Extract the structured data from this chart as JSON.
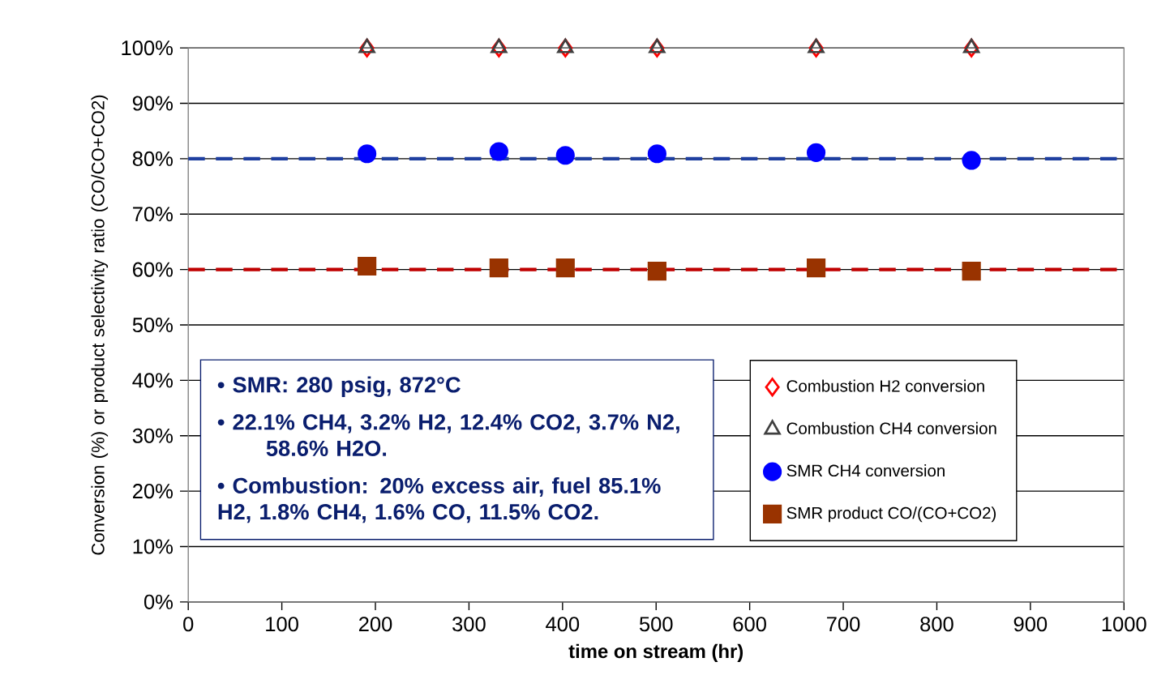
{
  "chart_data": {
    "type": "scatter",
    "xlabel": "time on stream (hr)",
    "ylabel": "Conversion (%) or product selectivity ratio (CO/CO+CO2)",
    "xlim": [
      0,
      1000
    ],
    "xticks": [
      0,
      100,
      200,
      300,
      400,
      500,
      600,
      700,
      800,
      900,
      1000
    ],
    "ylim": [
      0,
      100
    ],
    "yticks": [
      {
        "value": 0,
        "label": "0%"
      },
      {
        "value": 10,
        "label": "10%"
      },
      {
        "value": 20,
        "label": "20%"
      },
      {
        "value": 30,
        "label": "30%"
      },
      {
        "value": 40,
        "label": "40%"
      },
      {
        "value": 50,
        "label": "50%"
      },
      {
        "value": 60,
        "label": "60%"
      },
      {
        "value": 70,
        "label": "70%"
      },
      {
        "value": 80,
        "label": "80%"
      },
      {
        "value": 90,
        "label": "90%"
      },
      {
        "value": 100,
        "label": "100%"
      }
    ],
    "grid": "y",
    "legend": "bottom right",
    "x": [
      191,
      332,
      403,
      501,
      671,
      837
    ],
    "series": [
      {
        "name": "Combustion H2 conversion",
        "color": "#ff0000",
        "marker": "diamond",
        "values": [
          100,
          100,
          100,
          100,
          100,
          100
        ]
      },
      {
        "name": "Combustion CH4 conversion",
        "color": "#404040",
        "marker": "triangle",
        "values": [
          100,
          100,
          100,
          100,
          100,
          100
        ]
      },
      {
        "name": "SMR CH4 conversion",
        "color": "#0000ff",
        "marker": "circle",
        "values": [
          80.9,
          81.3,
          80.6,
          80.9,
          81.1,
          79.7
        ]
      },
      {
        "name": "SMR product CO/(CO+CO2)",
        "color": "#993300",
        "marker": "square",
        "values": [
          60.6,
          60.3,
          60.3,
          59.7,
          60.3,
          59.7
        ]
      }
    ],
    "ref_lines": [
      {
        "axis": "y",
        "value": 80,
        "color": "#1f3fa0",
        "line_style": "dashed"
      },
      {
        "axis": "y",
        "value": 60,
        "color": "#c00000",
        "line_style": "dashed"
      }
    ],
    "annotations": [
      "•     SMR: 280 psig, 872°C",
      "•      22.1% CH4, 3.2% H2, 12.4% CO2, 3.7% N2, 58.6% H2O.",
      "•     Combustion: 20% excess air, fuel 85.1% H2, 1.8% CH4, 1.6% CO, 11.5% CO2."
    ]
  }
}
